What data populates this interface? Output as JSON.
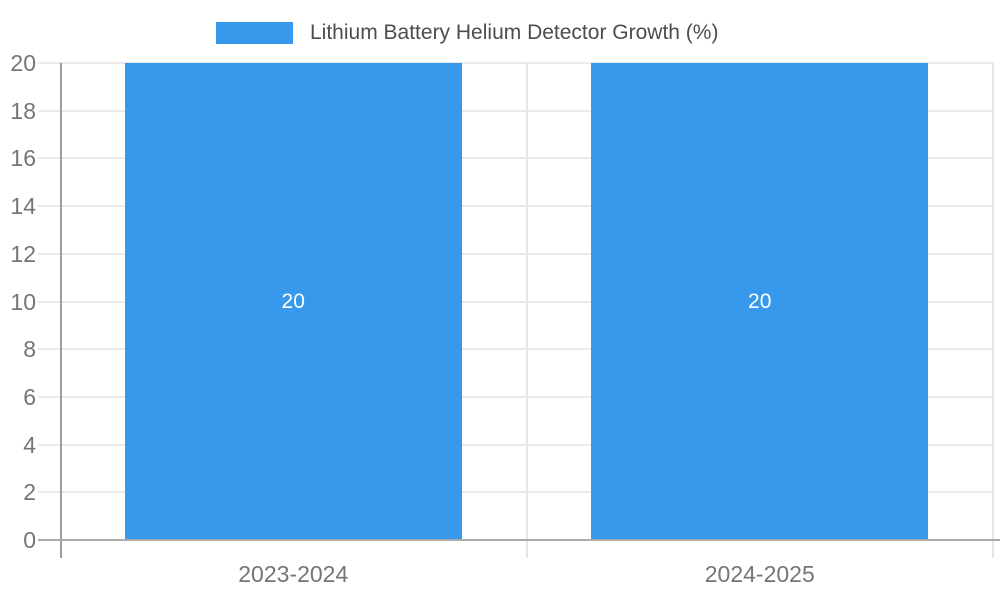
{
  "legend": {
    "label": "Lithium Battery Helium Detector Growth (%)"
  },
  "chart_data": {
    "type": "bar",
    "title": "Lithium Battery Helium Detector Growth (%)",
    "categories": [
      "2023-2024",
      "2024-2025"
    ],
    "series": [
      {
        "name": "Lithium Battery Helium Detector Growth (%)",
        "values": [
          20,
          20
        ]
      }
    ],
    "bar_value_labels": [
      "20",
      "20"
    ],
    "xlabel": "",
    "ylabel": "",
    "ylim": [
      0,
      20
    ],
    "yticks": [
      0,
      2,
      4,
      6,
      8,
      10,
      12,
      14,
      16,
      18,
      20
    ],
    "grid": true,
    "legend_position": "top",
    "colors": {
      "bar": "#3899ec",
      "bar_value_label": "#ffffff",
      "gridline": "#eaeaea",
      "axis_line": "#9c9c9c",
      "baseline": "#ababab",
      "separator": "#e5e5e5",
      "tick_label": "#757575",
      "legend_text": "#4d4d4d",
      "background": "#ffffff"
    }
  }
}
